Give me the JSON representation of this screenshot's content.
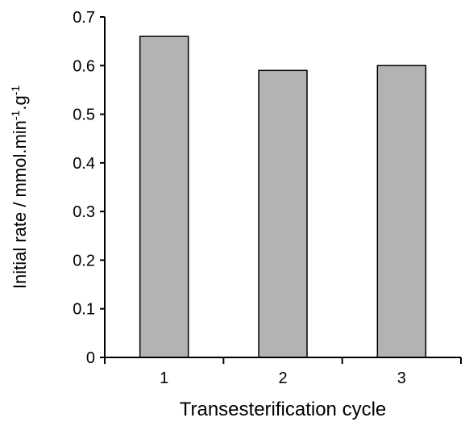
{
  "chart_data": {
    "type": "bar",
    "categories": [
      "1",
      "2",
      "3"
    ],
    "values": [
      0.66,
      0.59,
      0.6
    ],
    "title": "",
    "xlabel": "Transesterification cycle",
    "ylabel": {
      "main": "Initial rate / mmol.min",
      "exp1": "-1",
      "mid": ".g",
      "exp2": "-1"
    },
    "ylim": [
      0,
      0.7
    ],
    "yticks": [
      "0",
      "0.1",
      "0.2",
      "0.3",
      "0.4",
      "0.5",
      "0.6",
      "0.7"
    ],
    "grid": false,
    "legend": "none",
    "colors": {
      "bar_fill": "#b3b3b3",
      "bar_stroke": "#000000",
      "axis": "#000000"
    }
  }
}
